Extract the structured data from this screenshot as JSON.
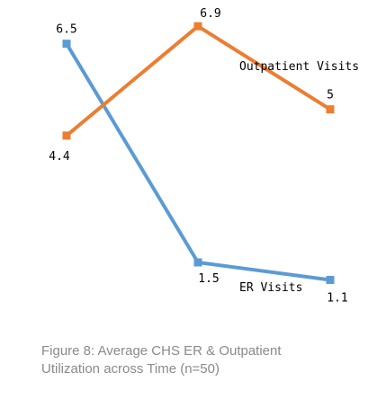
{
  "chart_data": {
    "type": "line",
    "categories": [
      "",
      "",
      ""
    ],
    "series": [
      {
        "name": "ER Visits",
        "color": "#5B9BD5",
        "values": [
          6.5,
          1.5,
          1.1
        ],
        "data_labels": [
          "6.5",
          "1.5",
          "1.1"
        ]
      },
      {
        "name": "Outpatient  Visits",
        "color": "#ED7D31",
        "values": [
          4.4,
          6.9,
          5
        ],
        "data_labels": [
          "4.4",
          "6.9",
          "5"
        ]
      }
    ],
    "ylim": [
      0,
      7.5
    ],
    "grid": false,
    "legend": "none",
    "xlabel": "",
    "ylabel": ""
  },
  "caption": {
    "line1": "Figure 8: Average CHS ER & Outpatient",
    "line2": "Utilization across Time (n=50)"
  }
}
